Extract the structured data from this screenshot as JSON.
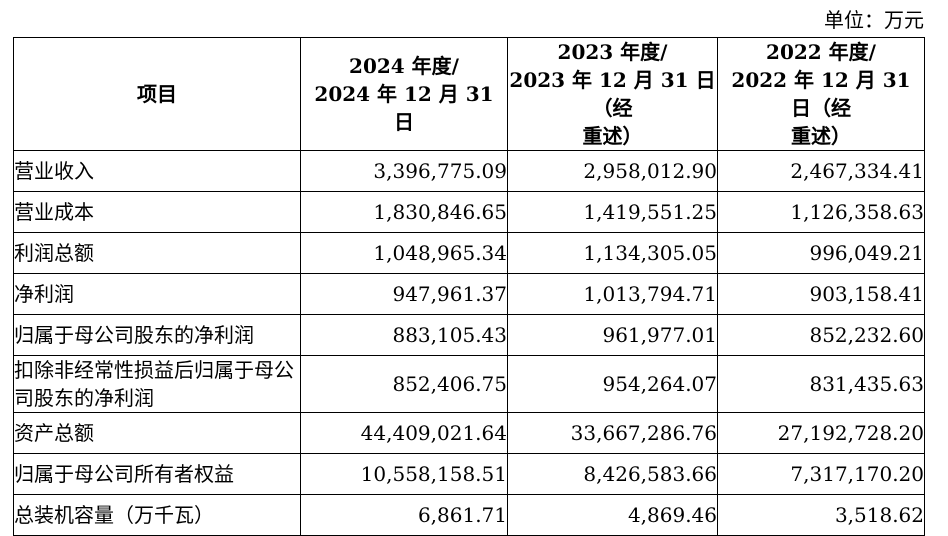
{
  "unit_label": "单位：万元",
  "table": {
    "header": {
      "item_col": "项目",
      "col_2024": {
        "lines": [
          "2024 年度/",
          "2024 年 12 月 31 日"
        ]
      },
      "col_2023": {
        "lines": [
          "2023 年度/",
          "2023 年 12 月 31 日（经",
          "重述）"
        ]
      },
      "col_2022": {
        "lines": [
          "2022 年度/",
          "2022 年 12 月 31 日（经",
          "重述）"
        ]
      }
    },
    "rows": [
      {
        "label": "营业收入",
        "values": [
          "3,396,775.09",
          "2,958,012.90",
          "2,467,334.41"
        ]
      },
      {
        "label": "营业成本",
        "values": [
          "1,830,846.65",
          "1,419,551.25",
          "1,126,358.63"
        ]
      },
      {
        "label": "利润总额",
        "values": [
          "1,048,965.34",
          "1,134,305.05",
          "996,049.21"
        ]
      },
      {
        "label": "净利润",
        "values": [
          "947,961.37",
          "1,013,794.71",
          "903,158.41"
        ]
      },
      {
        "label": "归属于母公司股东的净利润",
        "values": [
          "883,105.43",
          "961,977.01",
          "852,232.60"
        ]
      },
      {
        "label": "扣除非经常性损益后归属于母公司股东的净利润",
        "values": [
          "852,406.75",
          "954,264.07",
          "831,435.63"
        ]
      },
      {
        "label": "资产总额",
        "values": [
          "44,409,021.64",
          "33,667,286.76",
          "27,192,728.20"
        ]
      },
      {
        "label": "归属于母公司所有者权益",
        "values": [
          "10,558,158.51",
          "8,426,583.66",
          "7,317,170.20"
        ]
      },
      {
        "label": "总装机容量（万千瓦）",
        "values": [
          "6,861.71",
          "4,869.46",
          "3,518.62"
        ]
      }
    ]
  }
}
